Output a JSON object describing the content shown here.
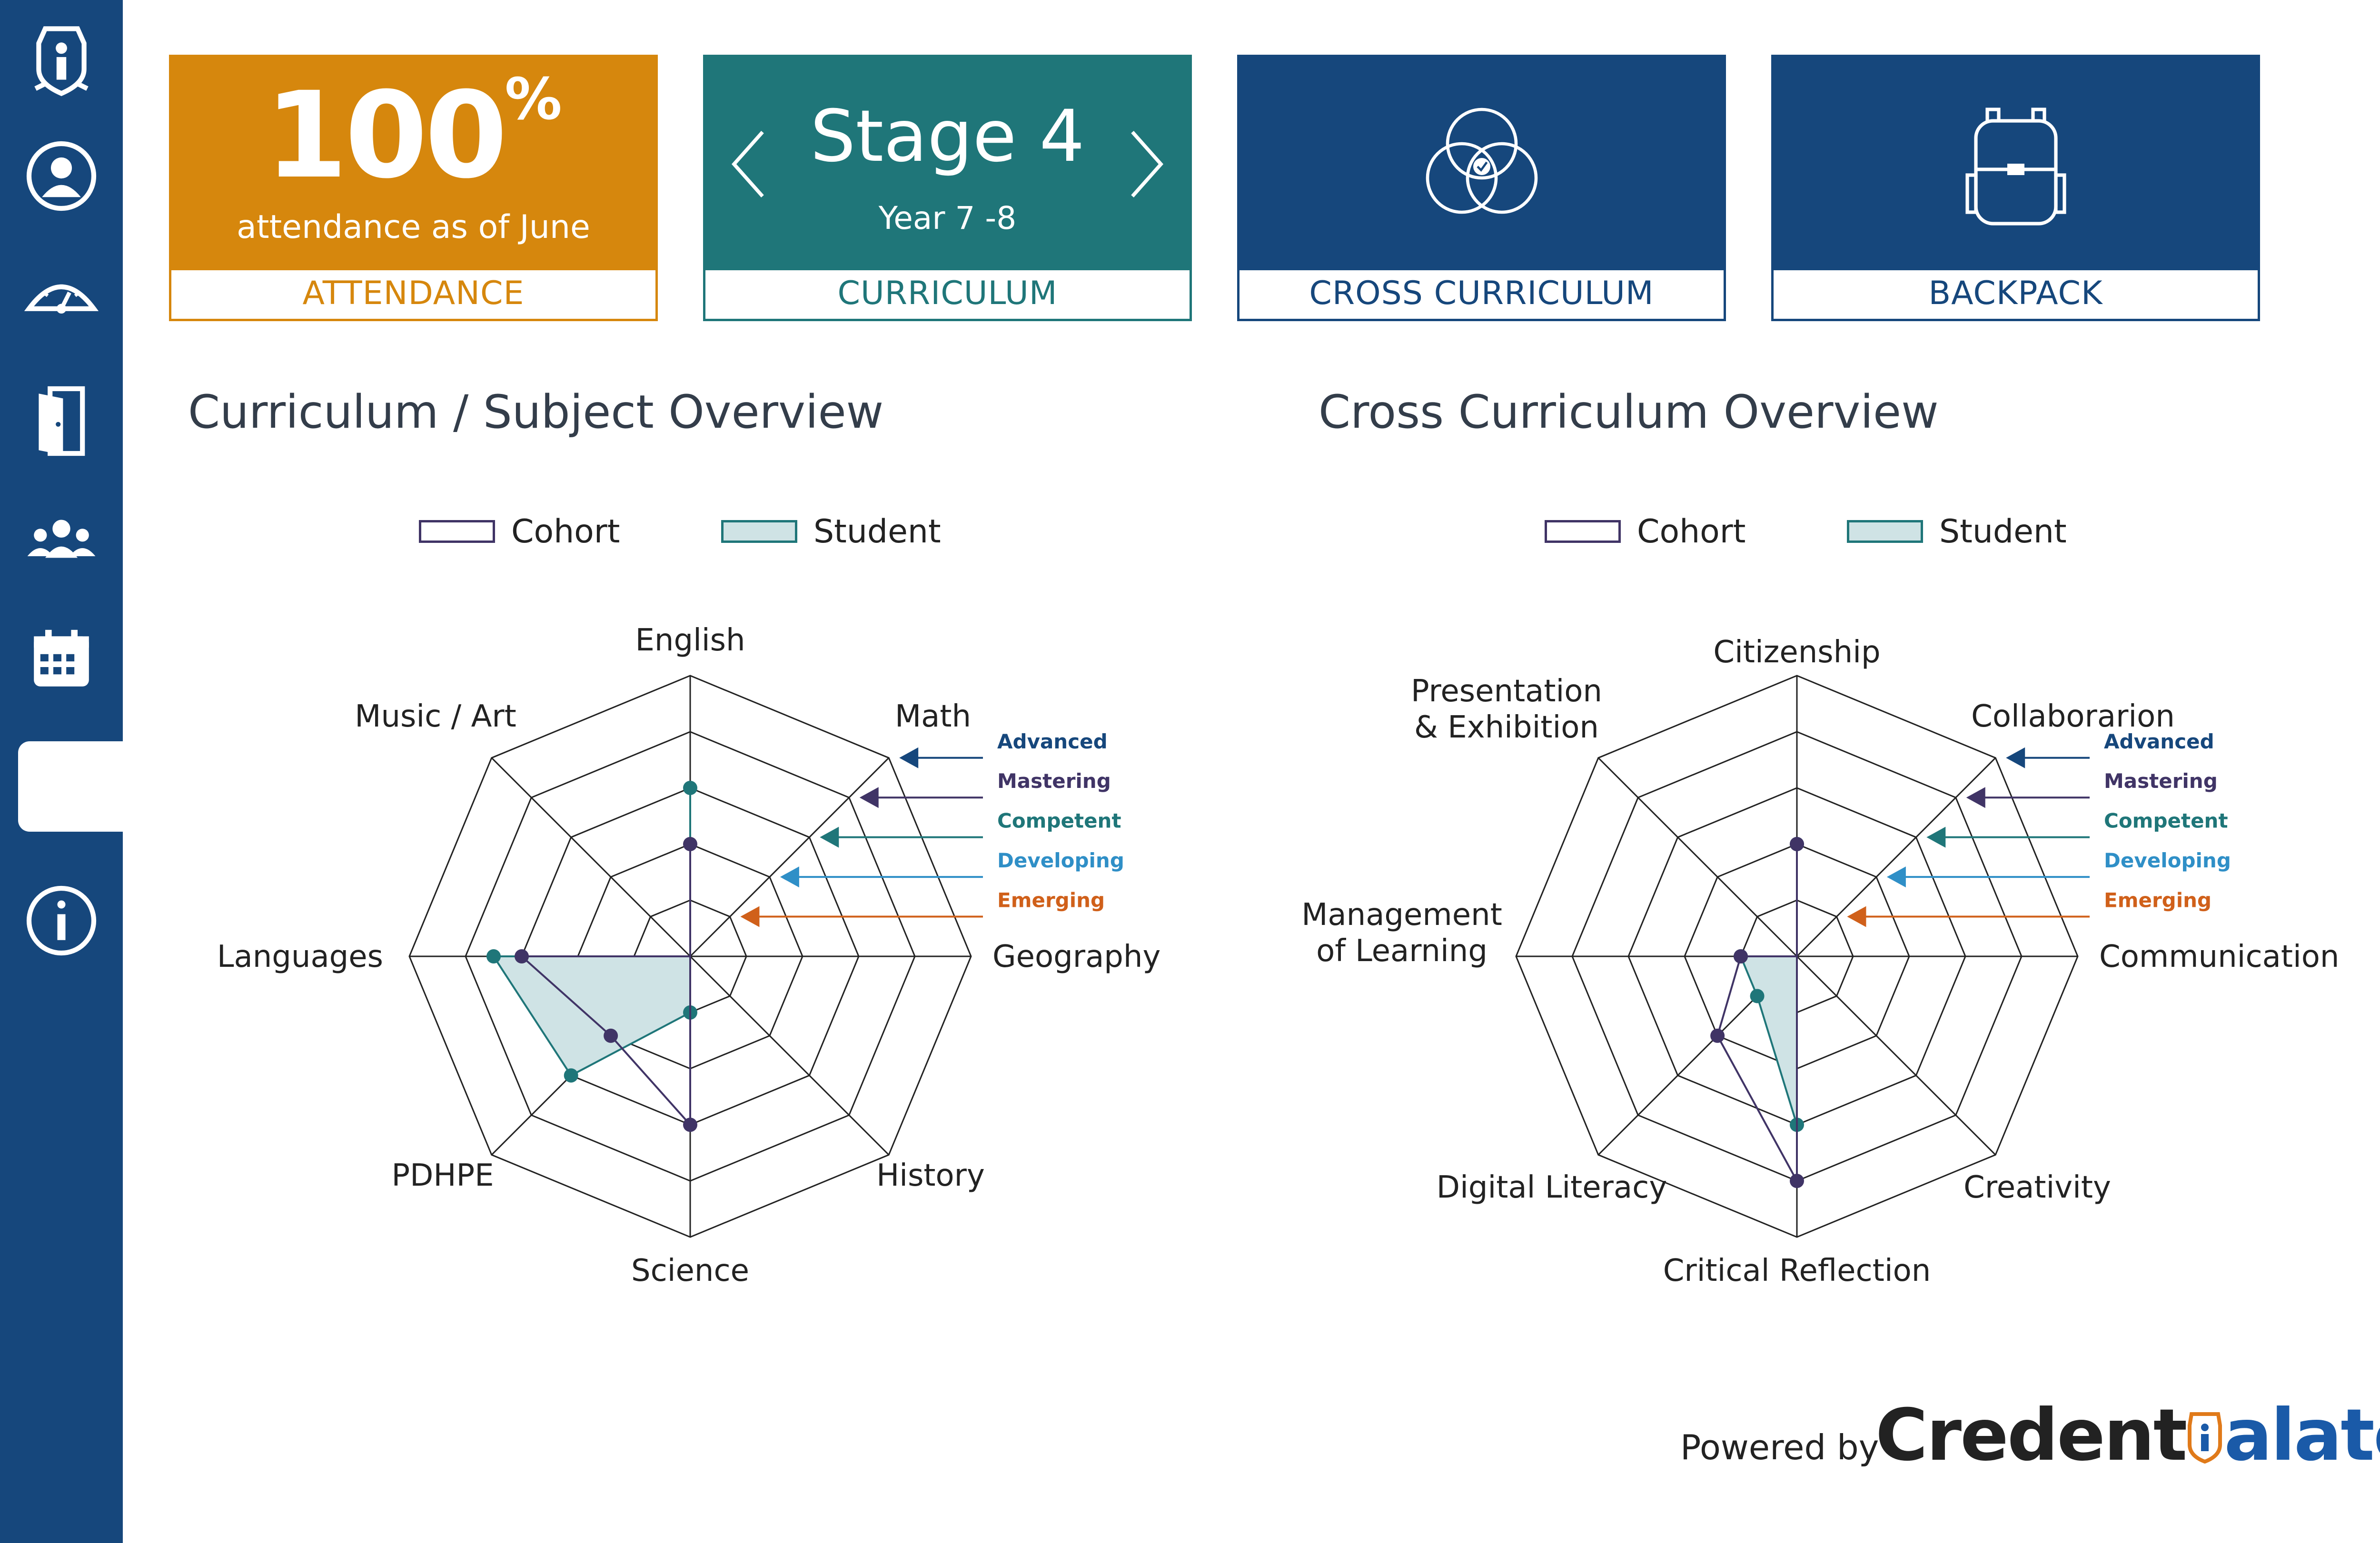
{
  "sidebar": {
    "items": [
      {
        "name": "school-crest-icon"
      },
      {
        "name": "profile-icon"
      },
      {
        "name": "dashboard-gauge-icon"
      },
      {
        "name": "door-icon"
      },
      {
        "name": "group-icon"
      },
      {
        "name": "calendar-icon"
      },
      {
        "name": "active-blank-item"
      },
      {
        "name": "info-icon"
      }
    ]
  },
  "cards": {
    "attendance": {
      "value": "100",
      "unit": "%",
      "subtitle": "attendance as of June",
      "label": "ATTENDANCE",
      "color": "#d6870d"
    },
    "curriculum": {
      "title": "Stage 4",
      "subtitle": "Year 7 -8",
      "label": "CURRICULUM",
      "color": "#1f7679"
    },
    "cross": {
      "label": "CROSS CURRICULUM",
      "icon": "venn-diagram-icon",
      "color": "#16477c"
    },
    "backpack": {
      "label": "BACKPACK",
      "icon": "backpack-icon",
      "color": "#16477c"
    }
  },
  "sections": {
    "subject": {
      "title": "Curriculum / Subject Overview"
    },
    "cross": {
      "title": "Cross Curriculum Overview"
    }
  },
  "legend": {
    "cohort": "Cohort",
    "student": "Student"
  },
  "levels": [
    {
      "name": "Advanced",
      "color": "#16477c"
    },
    {
      "name": "Mastering",
      "color": "#403466"
    },
    {
      "name": "Competent",
      "color": "#1f7679"
    },
    {
      "name": "Developing",
      "color": "#2f8fc7"
    },
    {
      "name": "Emerging",
      "color": "#d0601a"
    }
  ],
  "chart_data": [
    {
      "type": "radar",
      "title": "Curriculum / Subject Overview",
      "axes": [
        "English",
        "Math",
        "Geography",
        "History",
        "Science",
        "PDHPE",
        "Languages",
        "Music / Art"
      ],
      "scale_max": 5,
      "scale_levels": [
        "Emerging",
        "Developing",
        "Competent",
        "Mastering",
        "Advanced"
      ],
      "series": [
        {
          "name": "Cohort",
          "values": [
            2,
            0,
            0,
            0,
            3,
            2,
            3,
            0
          ],
          "color": "#403466"
        },
        {
          "name": "Student",
          "values": [
            3,
            0,
            0,
            0,
            1,
            3,
            3.5,
            0
          ],
          "color": "#1f7679",
          "fill": "#cfe3e5"
        }
      ]
    },
    {
      "type": "radar",
      "title": "Cross Curriculum Overview",
      "axes": [
        "Citizenship",
        "Collaborarion",
        "Communication",
        "Creativity",
        "Critical Reflection",
        "Digital Literacy",
        "Management of Learning",
        "Presentation & Exhibition"
      ],
      "axis_label_lines": [
        [
          "Citizenship"
        ],
        [
          "Collaborarion"
        ],
        [
          "Communication"
        ],
        [
          "Creativity"
        ],
        [
          "Critical Reflection"
        ],
        [
          "Digital Literacy"
        ],
        [
          "Management",
          "of Learning"
        ],
        [
          "Presentation",
          "& Exhibition"
        ]
      ],
      "scale_max": 5,
      "scale_levels": [
        "Emerging",
        "Developing",
        "Competent",
        "Mastering",
        "Advanced"
      ],
      "series": [
        {
          "name": "Cohort",
          "values": [
            2,
            0,
            0,
            0,
            4,
            2,
            1,
            0
          ],
          "color": "#403466"
        },
        {
          "name": "Student",
          "values": [
            2,
            0,
            0,
            0,
            3,
            1,
            1,
            0
          ],
          "color": "#1f7679",
          "fill": "#cfe3e5"
        }
      ]
    }
  ],
  "footer": {
    "powered_by": "Powered by",
    "logo_part1": "Credent",
    "logo_part2": "alate"
  }
}
